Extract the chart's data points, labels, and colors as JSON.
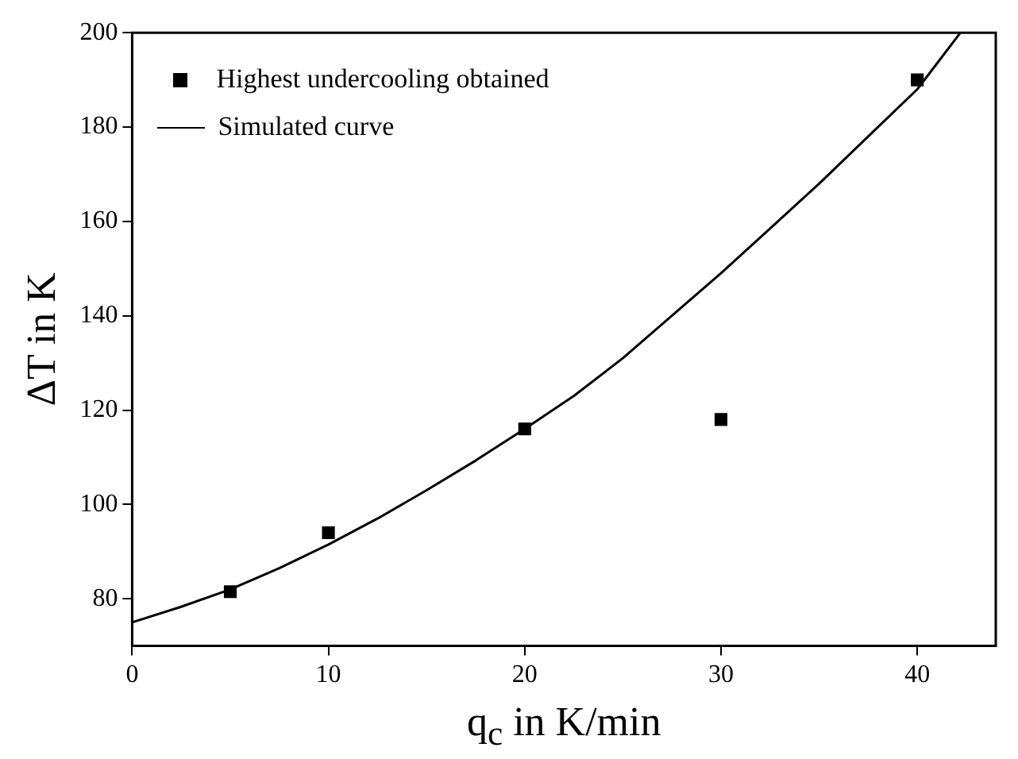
{
  "chart_data": {
    "type": "scatter",
    "xlabel": "q$_{c}$ in K/min",
    "ylabel": "ΔT in K",
    "xlim": [
      0,
      44
    ],
    "xticks": [
      0,
      10,
      20,
      30,
      40
    ],
    "ylim": [
      70,
      200
    ],
    "yticks": [
      80,
      100,
      120,
      140,
      160,
      180,
      200
    ],
    "grid": false,
    "legend": "top left",
    "series": [
      {
        "name": "Highest undercooling obtained",
        "marker": "square",
        "color": "#000000",
        "x": [
          5,
          10,
          20,
          30,
          40
        ],
        "values": [
          81.5,
          94,
          116,
          118,
          190
        ]
      },
      {
        "name": "Simulated curve",
        "type": "line",
        "marker": "none",
        "line_style": "solid",
        "color": "#000000",
        "x": [
          0,
          2.5,
          5,
          7.5,
          10,
          12.5,
          15,
          17.5,
          20,
          22.5,
          25,
          27.5,
          30,
          32.5,
          35,
          37.5,
          40,
          42.2
        ],
        "values": [
          75,
          78.3,
          82,
          86.5,
          91.5,
          97,
          103,
          109.3,
          116,
          123,
          131,
          140,
          149,
          158.5,
          168,
          178,
          188,
          200
        ]
      }
    ]
  }
}
